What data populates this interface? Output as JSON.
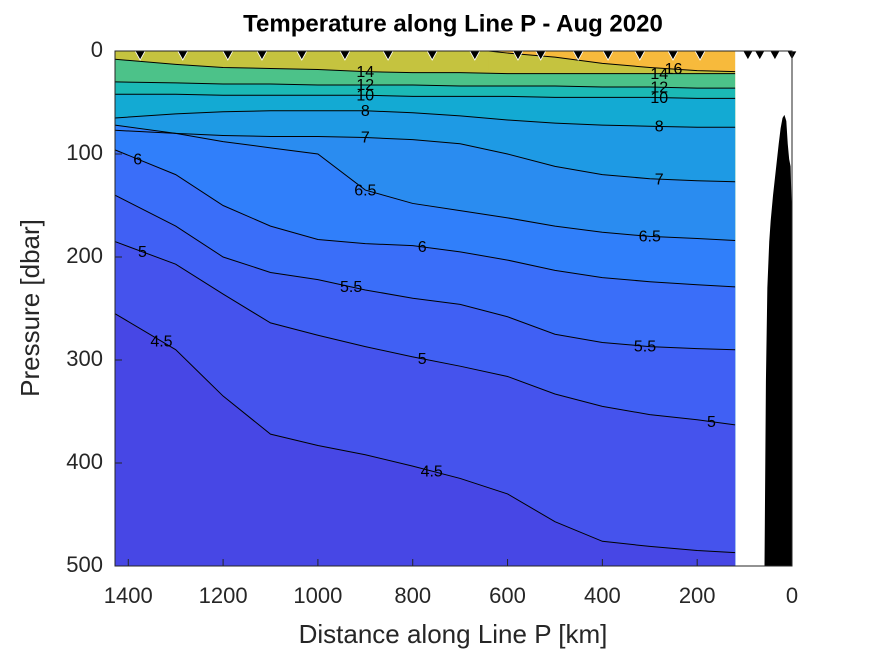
{
  "chart_data": {
    "type": "contour",
    "title": "Temperature along Line P - Aug 2020",
    "xlabel": "Distance along Line P [km]",
    "ylabel": "Pressure [dbar]",
    "xlim": [
      1428,
      0
    ],
    "ylim": [
      0,
      500
    ],
    "y_reversed": true,
    "xticks": [
      1400,
      1200,
      1000,
      800,
      600,
      400,
      200,
      0
    ],
    "yticks": [
      0,
      100,
      200,
      300,
      400,
      500
    ],
    "fill_above_color": "#f7ba3c",
    "line_color": "#000000",
    "series": [
      {
        "level": 4.5,
        "color": "#4747e5",
        "x": [
          1428,
          1300,
          1200,
          1100,
          1000,
          900,
          800,
          700,
          600,
          500,
          400,
          300,
          200,
          120
        ],
        "values": [
          255,
          290,
          335,
          372,
          383,
          392,
          403,
          415,
          430,
          457,
          476,
          481,
          485,
          487
        ]
      },
      {
        "level": 5,
        "color": "#4553ed",
        "x": [
          1428,
          1300,
          1200,
          1100,
          1000,
          900,
          800,
          700,
          600,
          500,
          400,
          300,
          200,
          120
        ],
        "values": [
          185,
          207,
          236,
          264,
          276,
          287,
          297,
          306,
          316,
          333,
          345,
          353,
          358,
          363
        ]
      },
      {
        "level": 5.5,
        "color": "#4060f4",
        "x": [
          1428,
          1300,
          1200,
          1100,
          1000,
          900,
          800,
          700,
          600,
          500,
          400,
          300,
          200,
          120
        ],
        "values": [
          140,
          170,
          200,
          215,
          222,
          232,
          240,
          246,
          258,
          275,
          283,
          287,
          289,
          290
        ]
      },
      {
        "level": 6,
        "color": "#3a6ef9",
        "x": [
          1428,
          1300,
          1200,
          1100,
          1000,
          900,
          800,
          700,
          600,
          500,
          400,
          300,
          200,
          120
        ],
        "values": [
          96,
          120,
          150,
          170,
          183,
          187,
          189,
          195,
          203,
          213,
          220,
          224,
          227,
          229
        ]
      },
      {
        "level": 6.5,
        "color": "#307ffa",
        "x": [
          1428,
          1300,
          1200,
          1100,
          1000,
          900,
          800,
          700,
          600,
          500,
          400,
          300,
          200,
          120
        ],
        "values": [
          72,
          80,
          88,
          94,
          100,
          135,
          148,
          155,
          162,
          170,
          176,
          180,
          182,
          184
        ]
      },
      {
        "level": 7,
        "color": "#2a8cf0",
        "x": [
          1428,
          1300,
          1200,
          1100,
          1000,
          900,
          800,
          700,
          600,
          500,
          400,
          300,
          200,
          120
        ],
        "values": [
          77,
          80,
          82,
          83,
          83,
          84,
          86,
          90,
          100,
          112,
          120,
          124,
          126,
          127
        ]
      },
      {
        "level": 8,
        "color": "#1e9ae4",
        "x": [
          1428,
          1300,
          1200,
          1100,
          1000,
          900,
          800,
          700,
          600,
          500,
          400,
          300,
          200,
          120
        ],
        "values": [
          65,
          61,
          59,
          58,
          58,
          58,
          60,
          63,
          67,
          70,
          72,
          73,
          74,
          74
        ]
      },
      {
        "level": 10,
        "color": "#13aad3",
        "x": [
          1428,
          1300,
          1200,
          1100,
          1000,
          900,
          800,
          700,
          600,
          500,
          400,
          300,
          200,
          120
        ],
        "values": [
          42,
          42,
          43,
          43,
          43,
          43,
          44,
          44,
          44,
          45,
          45,
          45,
          46,
          46
        ]
      },
      {
        "level": 12,
        "color": "#1bb9b5",
        "x": [
          1428,
          1300,
          1200,
          1100,
          1000,
          900,
          800,
          700,
          600,
          500,
          400,
          300,
          200,
          120
        ],
        "values": [
          30,
          31,
          32,
          32,
          33,
          33,
          33,
          34,
          34,
          34,
          35,
          35,
          36,
          36
        ]
      },
      {
        "level": 14,
        "color": "#4cc289",
        "x": [
          1428,
          1300,
          1200,
          1100,
          1000,
          900,
          800,
          700,
          600,
          500,
          400,
          300,
          200,
          120
        ],
        "values": [
          8,
          13,
          16,
          17,
          18,
          20,
          21,
          21,
          22,
          22,
          22,
          22,
          22,
          22
        ]
      },
      {
        "level": 16,
        "color": "#c5c33f",
        "x": [
          640,
          600,
          500,
          400,
          300,
          200,
          120
        ],
        "values": [
          0,
          2,
          6,
          12,
          16,
          19,
          20
        ]
      }
    ],
    "stations": {
      "x": [
        1375,
        1285,
        1190,
        1118,
        1034,
        943,
        852,
        759,
        669,
        578,
        530,
        451,
        388,
        321,
        251,
        194,
        93,
        68,
        36,
        0
      ]
    },
    "bathymetry": {
      "color": "#000000",
      "x": [
        58,
        55,
        52,
        48,
        45,
        40,
        34,
        28,
        24,
        20,
        16,
        12,
        9,
        6,
        3,
        0
      ],
      "values": [
        500,
        320,
        230,
        185,
        165,
        140,
        115,
        90,
        75,
        65,
        62,
        68,
        90,
        105,
        112,
        165
      ]
    }
  }
}
